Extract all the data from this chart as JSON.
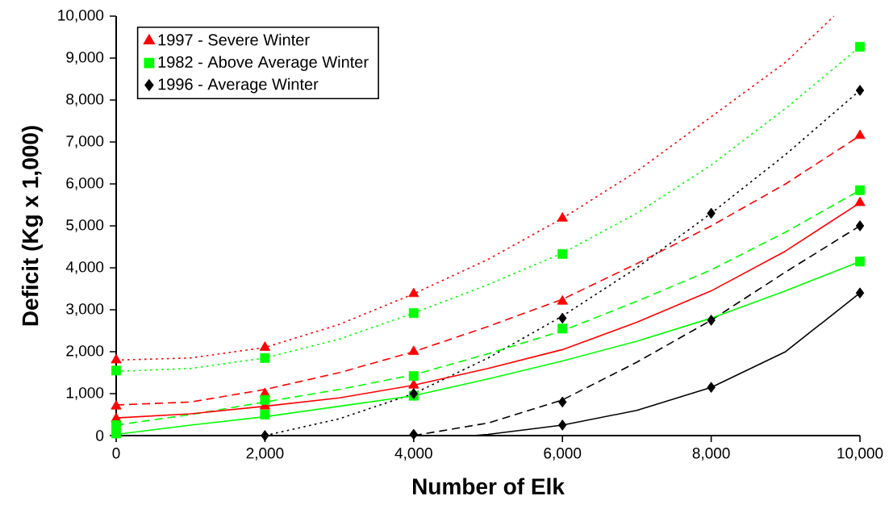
{
  "chart_data": {
    "type": "scatter",
    "xlabel": "Number of Elk",
    "ylabel": "Deficit (Kg x 1,000)",
    "xlim": [
      0,
      10000
    ],
    "ylim": [
      0,
      10000
    ],
    "xticks": [
      0,
      {
        "value": 2000,
        "label": "2,000"
      },
      {
        "value": 4000,
        "label": "4,000"
      },
      {
        "value": 6000,
        "label": "6,000"
      },
      {
        "value": 8000,
        "label": "8,000"
      },
      {
        "value": 10000,
        "label": "10,000"
      }
    ],
    "yticks": [
      0,
      {
        "value": 1000,
        "label": "1,000"
      },
      {
        "value": 2000,
        "label": "2,000"
      },
      {
        "value": 3000,
        "label": "3,000"
      },
      {
        "value": 4000,
        "label": "4,000"
      },
      {
        "value": 5000,
        "label": "5,000"
      },
      {
        "value": 6000,
        "label": "6,000"
      },
      {
        "value": 7000,
        "label": "7,000"
      },
      {
        "value": 8000,
        "label": "8,000"
      },
      {
        "value": 9000,
        "label": "9,000"
      },
      {
        "value": 10000,
        "label": "10,000"
      }
    ],
    "grid": false,
    "legend": "top left",
    "series": [
      {
        "type": "line",
        "color": "#ff0000",
        "line_style": "dotted",
        "marker": "none",
        "x": [
          0,
          1000,
          2000,
          3000,
          4000,
          5000,
          6000,
          7000,
          8000,
          9000,
          9650
        ],
        "values": [
          1800,
          1850,
          2100,
          2650,
          3380,
          4200,
          5180,
          6300,
          7600,
          8900,
          10000
        ]
      },
      {
        "type": "line",
        "color": "#00ff00",
        "line_style": "dotted",
        "marker": "none",
        "x": [
          0,
          1000,
          2000,
          3000,
          4000,
          5000,
          6000,
          7000,
          8000,
          9000,
          10000
        ],
        "values": [
          1530,
          1600,
          1850,
          2300,
          2920,
          3600,
          4350,
          5300,
          6450,
          7800,
          9270
        ]
      },
      {
        "type": "line",
        "color": "#000000",
        "line_style": "dotted",
        "marker": "none",
        "x": [
          2000,
          3000,
          4000,
          5000,
          6000,
          7000,
          8000,
          9000,
          10000
        ],
        "values": [
          0,
          400,
          1000,
          1850,
          2850,
          4000,
          5300,
          6700,
          8230
        ]
      },
      {
        "type": "line",
        "color": "#ff0000",
        "line_style": "dashed",
        "marker": "none",
        "x": [
          0,
          1000,
          2000,
          3000,
          4000,
          5000,
          6000,
          7000,
          8000,
          9000,
          10000
        ],
        "values": [
          730,
          800,
          1100,
          1500,
          2000,
          2600,
          3250,
          4100,
          5000,
          6000,
          7150
        ]
      },
      {
        "type": "line",
        "color": "#00ff00",
        "line_style": "dashed",
        "marker": "none",
        "x": [
          0,
          1000,
          2000,
          3000,
          4000,
          5000,
          6000,
          7000,
          8000,
          9000,
          10000
        ],
        "values": [
          250,
          500,
          800,
          1100,
          1450,
          1950,
          2500,
          3200,
          3950,
          4850,
          5850
        ]
      },
      {
        "type": "line",
        "color": "#000000",
        "line_style": "dashed",
        "marker": "none",
        "x": [
          4000,
          5000,
          6000,
          7000,
          8000,
          9000,
          10000
        ],
        "values": [
          0,
          300,
          850,
          1750,
          2750,
          3900,
          5000
        ]
      },
      {
        "type": "line",
        "color": "#ff0000",
        "line_style": "solid",
        "marker": "none",
        "x": [
          0,
          1000,
          2000,
          3000,
          4000,
          5000,
          6000,
          7000,
          8000,
          9000,
          10000
        ],
        "values": [
          420,
          520,
          700,
          900,
          1200,
          1600,
          2050,
          2700,
          3450,
          4400,
          5550
        ]
      },
      {
        "type": "line",
        "color": "#00ff00",
        "line_style": "solid",
        "marker": "none",
        "x": [
          0,
          1000,
          2000,
          3000,
          4000,
          5000,
          6000,
          7000,
          8000,
          9000,
          10000
        ],
        "values": [
          30,
          250,
          450,
          700,
          950,
          1350,
          1780,
          2250,
          2800,
          3450,
          4150
        ]
      },
      {
        "type": "line",
        "color": "#000000",
        "line_style": "solid",
        "marker": "none",
        "x": [
          4800,
          5000,
          6000,
          7000,
          8000,
          9000,
          10000
        ],
        "values": [
          0,
          30,
          250,
          600,
          1150,
          2000,
          3400
        ]
      },
      {
        "name": "1997 -  Severe Winter",
        "color": "#ff0000",
        "marker": "triangle",
        "x": [
          0,
          0,
          0,
          2000,
          2000,
          2000,
          4000,
          4000,
          4000,
          6000,
          6000,
          10000,
          10000
        ],
        "values": [
          1800,
          700,
          400,
          2100,
          1000,
          700,
          3380,
          2000,
          1200,
          5180,
          3200,
          7150,
          5550
        ]
      },
      {
        "name": "1982 - Above Average Winter",
        "color": "#00ff00",
        "marker": "square",
        "x": [
          0,
          0,
          0,
          2000,
          2000,
          2000,
          4000,
          4000,
          4000,
          6000,
          6000,
          10000,
          10000,
          10000
        ],
        "values": [
          1550,
          250,
          50,
          1850,
          850,
          500,
          2920,
          1420,
          950,
          4330,
          2550,
          9270,
          5850,
          4150
        ]
      },
      {
        "name": "1996 - Average Winter",
        "color": "#000000",
        "marker": "diamond",
        "x": [
          2000,
          4000,
          4000,
          6000,
          6000,
          6000,
          8000,
          8000,
          8000,
          10000,
          10000,
          10000
        ],
        "values": [
          0,
          1000,
          30,
          2800,
          800,
          250,
          5300,
          2750,
          1150,
          8230,
          5000,
          3400
        ]
      }
    ]
  }
}
